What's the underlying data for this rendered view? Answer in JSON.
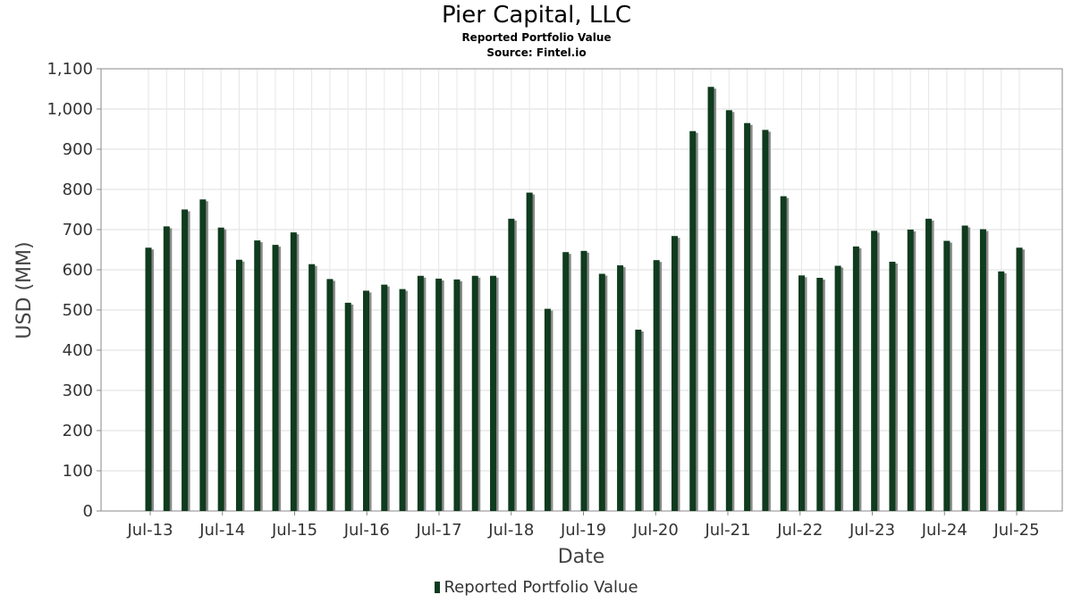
{
  "chart_data": {
    "type": "bar",
    "title": "Pier Capital, LLC",
    "subtitle": "Reported Portfolio Value",
    "source": "Source: Fintel.io",
    "xlabel": "Date",
    "ylabel": "USD (MM)",
    "ylim": [
      0,
      1100
    ],
    "yticks": [
      "0",
      "100",
      "200",
      "300",
      "400",
      "500",
      "600",
      "700",
      "800",
      "900",
      "1,000",
      "1,100"
    ],
    "xtick_labels": [
      "Jul-13",
      "Jul-14",
      "Jul-15",
      "Jul-16",
      "Jul-17",
      "Jul-18",
      "Jul-19",
      "Jul-20",
      "Jul-21",
      "Jul-22",
      "Jul-23",
      "Jul-24",
      "Jul-25"
    ],
    "grid": true,
    "legend_position": "bottom-center",
    "colors": {
      "bar": "#0f3b1e",
      "shadow": "#8a8a8a",
      "grid": "#dddddd"
    },
    "series": [
      {
        "name": "Reported Portfolio Value",
        "values": [
          655,
          708,
          750,
          775,
          705,
          625,
          673,
          662,
          693,
          614,
          577,
          518,
          548,
          563,
          552,
          585,
          578,
          576,
          585,
          585,
          727,
          792,
          503,
          644,
          647,
          590,
          611,
          451,
          624,
          684,
          945,
          1055,
          997,
          965,
          948,
          783,
          586,
          580,
          610,
          658,
          697,
          620,
          700,
          727,
          672,
          710,
          701,
          596,
          655
        ]
      }
    ]
  }
}
